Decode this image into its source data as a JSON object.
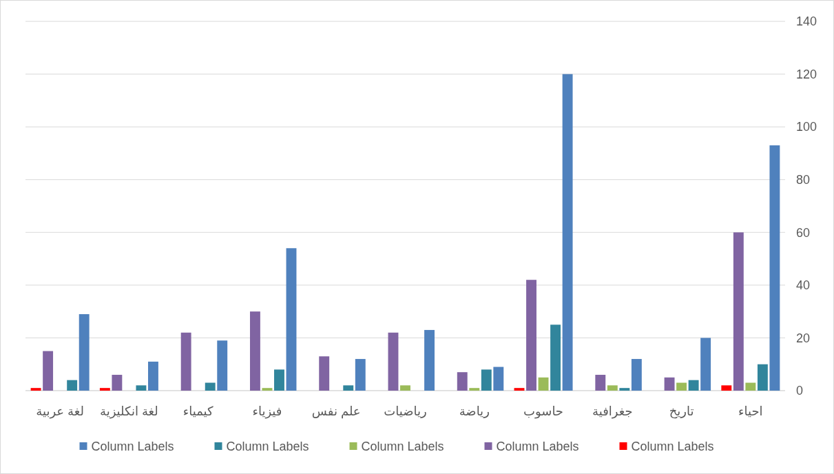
{
  "chart_data": {
    "type": "bar",
    "categories": [
      "لغة عربية",
      "لغة انكليزية",
      "كيمياء",
      "فيزياء",
      "علم نفس",
      "رياضيات",
      "رياضة",
      "حاسوب",
      "جغرافية",
      "تاريخ",
      "احياء"
    ],
    "series": [
      {
        "name": "Column Labels",
        "color": "#4f81bd",
        "values": [
          29,
          11,
          19,
          54,
          12,
          23,
          9,
          120,
          12,
          20,
          93
        ]
      },
      {
        "name": "Column Labels",
        "color": "#31859c",
        "values": [
          4,
          2,
          3,
          8,
          2,
          null,
          8,
          25,
          1,
          4,
          10
        ]
      },
      {
        "name": "Column Labels",
        "color": "#9bbb59",
        "values": [
          null,
          null,
          null,
          1,
          null,
          2,
          1,
          5,
          2,
          3,
          3
        ]
      },
      {
        "name": "Column Labels",
        "color": "#8064a2",
        "values": [
          15,
          6,
          22,
          30,
          13,
          22,
          7,
          42,
          6,
          5,
          60
        ]
      },
      {
        "name": "Column Labels",
        "color": "#ff0000",
        "values": [
          1,
          1,
          null,
          null,
          null,
          null,
          null,
          1,
          null,
          null,
          2
        ]
      }
    ],
    "ylim": [
      0,
      140
    ],
    "yticks": [
      0,
      20,
      40,
      60,
      80,
      100,
      120,
      140
    ],
    "grid": "y",
    "legend": "bottom"
  }
}
